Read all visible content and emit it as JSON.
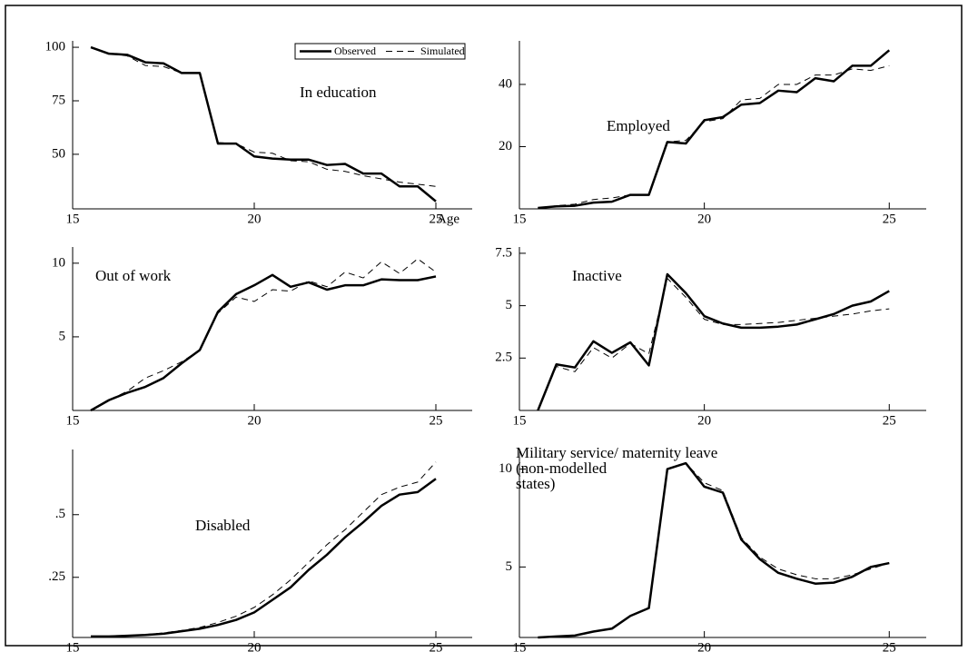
{
  "chart_data": [
    {
      "type": "line",
      "title": "In education",
      "xlabel": "Age",
      "legend": "top",
      "x": [
        15.5,
        16,
        16.5,
        17,
        17.5,
        18,
        18.5,
        19,
        19.5,
        20,
        20.5,
        21,
        21.5,
        22,
        22.5,
        23,
        23.5,
        24,
        24.5,
        25
      ],
      "xlim": [
        15,
        26
      ],
      "xticks": [
        15,
        20,
        25
      ],
      "ylim": [
        24.5,
        103
      ],
      "yticks": [
        50,
        75,
        100
      ],
      "series": [
        {
          "name": "Observed",
          "color": "#000000",
          "style": "solid",
          "values": [
            100,
            97,
            96.5,
            93,
            92.5,
            88,
            88,
            55,
            55,
            49,
            48,
            47.5,
            47.5,
            45,
            45.5,
            41,
            41,
            35,
            35,
            28
          ]
        },
        {
          "name": "Simulated",
          "color": "#000000",
          "style": "dashed",
          "values": [
            100,
            97,
            96,
            91.5,
            91,
            88,
            88,
            55.5,
            55,
            51,
            50.5,
            47,
            46.5,
            43,
            42,
            40,
            38.5,
            37,
            36,
            35
          ]
        }
      ]
    },
    {
      "type": "line",
      "title": "Employed",
      "x": [
        15.5,
        16,
        16.5,
        17,
        17.5,
        18,
        18.5,
        19,
        19.5,
        20,
        20.5,
        21,
        21.5,
        22,
        22.5,
        23,
        23.5,
        24,
        24.5,
        25
      ],
      "xlim": [
        15,
        26
      ],
      "xticks": [
        15,
        20,
        25
      ],
      "ylim": [
        0,
        54
      ],
      "yticks": [
        20,
        40
      ],
      "series": [
        {
          "color": "#000000",
          "style": "solid",
          "values": [
            0.3,
            0.8,
            1,
            2,
            2.3,
            4.5,
            4.5,
            21.5,
            21,
            28.5,
            29.5,
            33.5,
            34,
            38,
            37.5,
            42,
            41,
            46,
            46,
            51
          ]
        },
        {
          "color": "#000000",
          "style": "dashed",
          "values": [
            0.3,
            1,
            1.5,
            3,
            3.5,
            4.5,
            4.5,
            21.5,
            22,
            28,
            29,
            35,
            35.5,
            40,
            40,
            43,
            43,
            45,
            44.5,
            46
          ]
        }
      ]
    },
    {
      "type": "line",
      "title": "Out of work",
      "x": [
        15.5,
        16,
        16.5,
        17,
        17.5,
        18,
        18.5,
        19,
        19.5,
        20,
        20.5,
        21,
        21.5,
        22,
        22.5,
        23,
        23.5,
        24,
        24.5,
        25
      ],
      "xlim": [
        15,
        26
      ],
      "xticks": [
        15,
        20,
        25
      ],
      "ylim": [
        0,
        11.1
      ],
      "yticks": [
        5,
        10
      ],
      "series": [
        {
          "color": "#000000",
          "style": "solid",
          "values": [
            0,
            0.7,
            1.2,
            1.6,
            2.2,
            3.2,
            4.1,
            6.7,
            7.9,
            8.5,
            9.2,
            8.4,
            8.7,
            8.2,
            8.5,
            8.5,
            8.9,
            8.85,
            8.85,
            9.1
          ]
        },
        {
          "color": "#000000",
          "style": "dashed",
          "values": [
            0,
            0.7,
            1.3,
            2.2,
            2.7,
            3.3,
            4.1,
            6.6,
            7.7,
            7.4,
            8.2,
            8.1,
            8.8,
            8.4,
            9.4,
            9,
            10.1,
            9.3,
            10.3,
            9.4
          ]
        }
      ]
    },
    {
      "type": "line",
      "title": "Inactive",
      "x": [
        15.5,
        16,
        16.5,
        17,
        17.5,
        18,
        18.5,
        19,
        19.5,
        20,
        20.5,
        21,
        21.5,
        22,
        22.5,
        23,
        23.5,
        24,
        24.5,
        25
      ],
      "xlim": [
        15,
        26
      ],
      "xticks": [
        15,
        20,
        25
      ],
      "ylim": [
        0,
        7.8
      ],
      "yticks": [
        2.5,
        5,
        7.5
      ],
      "series": [
        {
          "color": "#000000",
          "style": "solid",
          "values": [
            0,
            2.2,
            2.05,
            3.3,
            2.75,
            3.25,
            2.15,
            6.5,
            5.6,
            4.5,
            4.15,
            3.95,
            3.95,
            4.0,
            4.1,
            4.35,
            4.6,
            5.0,
            5.2,
            5.7
          ]
        },
        {
          "color": "#000000",
          "style": "dashed",
          "values": [
            0,
            2.1,
            1.85,
            3.0,
            2.5,
            3.2,
            2.7,
            6.3,
            5.4,
            4.35,
            4.1,
            4.1,
            4.15,
            4.2,
            4.3,
            4.4,
            4.5,
            4.6,
            4.75,
            4.85
          ]
        }
      ]
    },
    {
      "type": "line",
      "title": "Disabled",
      "x": [
        15.5,
        16,
        16.5,
        17,
        17.5,
        18,
        18.5,
        19,
        19.5,
        20,
        20.5,
        21,
        21.5,
        22,
        22.5,
        23,
        23.5,
        24,
        24.5,
        25
      ],
      "xlim": [
        15,
        26
      ],
      "xticks": [
        15,
        20,
        25
      ],
      "ylim": [
        0.01,
        0.76
      ],
      "yticks": [
        {
          "value": 0.25,
          "label": ".25"
        },
        {
          "value": 0.5,
          "label": ".5"
        }
      ],
      "series": [
        {
          "color": "#000000",
          "style": "solid",
          "values": [
            0.014,
            0.014,
            0.017,
            0.02,
            0.025,
            0.035,
            0.045,
            0.06,
            0.08,
            0.11,
            0.16,
            0.21,
            0.28,
            0.34,
            0.41,
            0.47,
            0.535,
            0.58,
            0.59,
            0.643
          ]
        },
        {
          "color": "#000000",
          "style": "dashed",
          "values": [
            0.014,
            0.014,
            0.018,
            0.022,
            0.028,
            0.038,
            0.05,
            0.07,
            0.095,
            0.13,
            0.18,
            0.24,
            0.31,
            0.38,
            0.44,
            0.51,
            0.58,
            0.61,
            0.63,
            0.71
          ]
        }
      ]
    },
    {
      "type": "line",
      "title": [
        "Military service/ maternity leave",
        "(non-modelled",
        "states)"
      ],
      "x": [
        15.5,
        16,
        16.5,
        17,
        17.5,
        18,
        18.5,
        19,
        19.5,
        20,
        20.5,
        21,
        21.5,
        22,
        22.5,
        23,
        23.5,
        24,
        24.5,
        25
      ],
      "xlim": [
        15,
        26
      ],
      "xticks": [
        15,
        20,
        25
      ],
      "ylim": [
        1.4,
        11
      ],
      "yticks": [
        5,
        10
      ],
      "series": [
        {
          "color": "#000000",
          "style": "solid",
          "values": [
            1.4,
            1.45,
            1.5,
            1.7,
            1.85,
            2.5,
            2.9,
            10,
            10.3,
            9.1,
            8.8,
            6.4,
            5.4,
            4.7,
            4.4,
            4.15,
            4.2,
            4.5,
            5.0,
            5.2
          ]
        },
        {
          "color": "#000000",
          "style": "dashed",
          "values": [
            1.4,
            1.45,
            1.5,
            1.7,
            1.85,
            2.5,
            2.9,
            10,
            10.3,
            9.3,
            8.9,
            6.5,
            5.5,
            4.9,
            4.6,
            4.4,
            4.4,
            4.6,
            4.9,
            5.2
          ]
        }
      ]
    }
  ]
}
